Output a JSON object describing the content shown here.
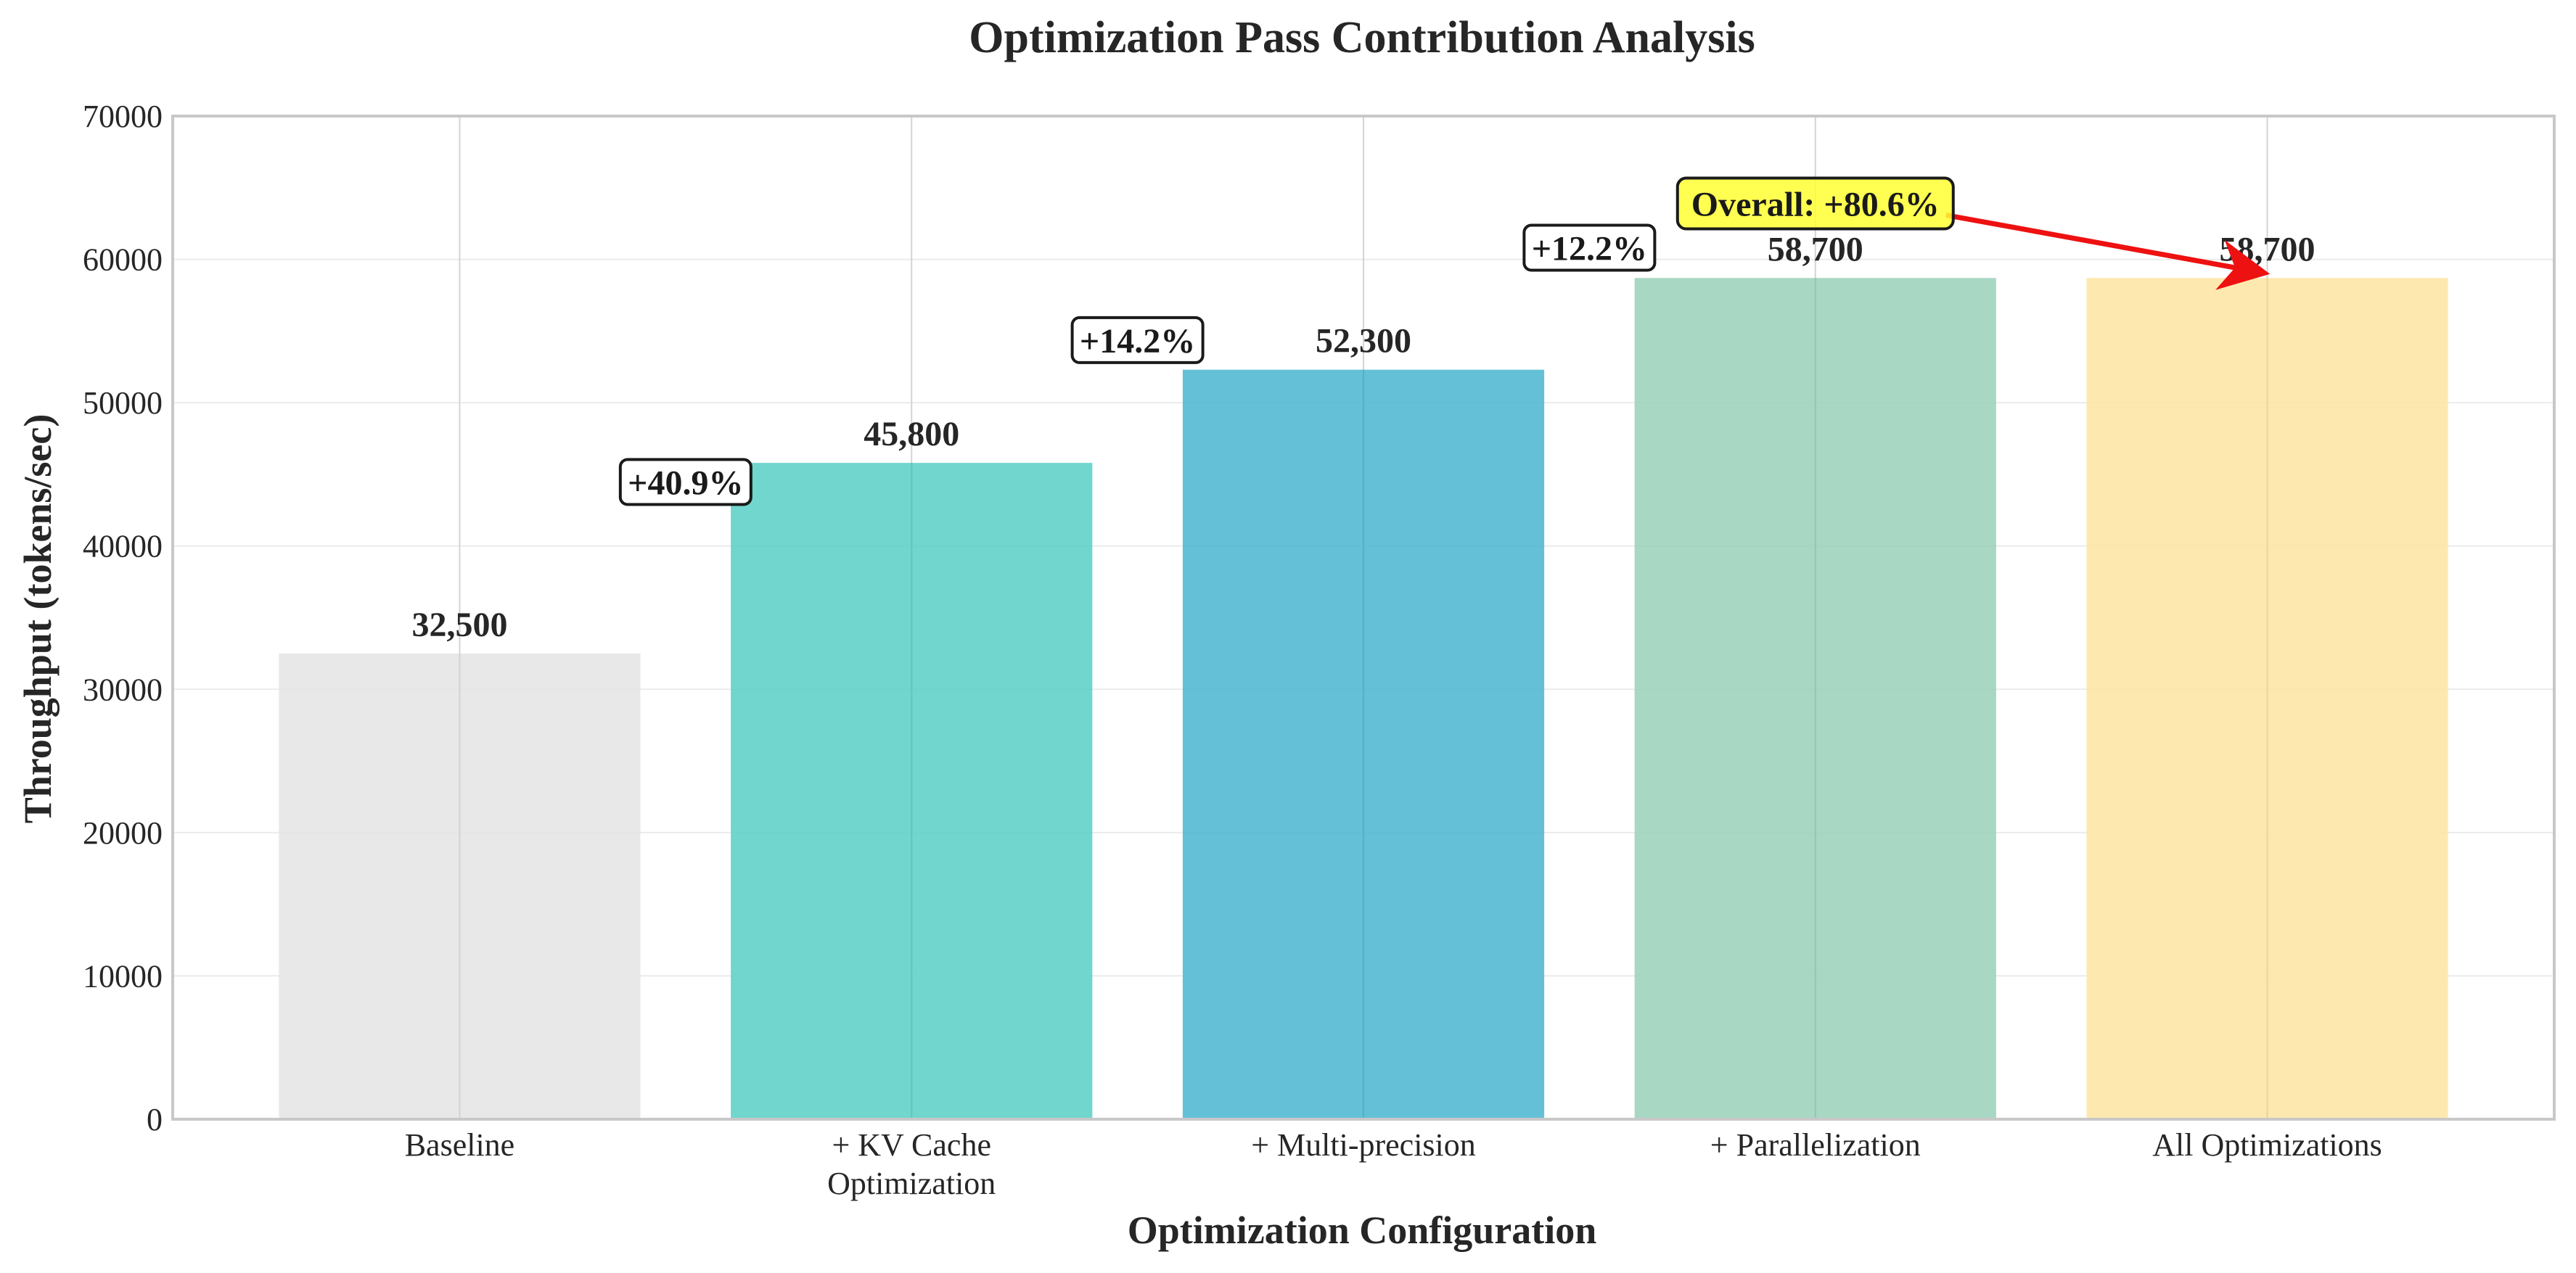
{
  "chart_data": {
    "type": "bar",
    "title": "Optimization Pass Contribution Analysis",
    "xlabel": "Optimization Configuration",
    "ylabel": "Throughput (tokens/sec)",
    "ylim": [
      0,
      70000
    ],
    "yticks": [
      0,
      10000,
      20000,
      30000,
      40000,
      50000,
      60000,
      70000
    ],
    "grid": true,
    "categories": [
      [
        "Baseline"
      ],
      [
        "+ KV Cache",
        "Optimization"
      ],
      [
        "+ Multi-precision"
      ],
      [
        "+ Parallelization"
      ],
      [
        "All Optimizations"
      ]
    ],
    "values": [
      32500,
      45800,
      52300,
      58700,
      58700
    ],
    "value_labels": [
      "32,500",
      "45,800",
      "52,300",
      "58,700",
      "58,700"
    ],
    "colors": [
      "#e6e6e6",
      "#62d1c8",
      "#52b9d3",
      "#9fd3bd",
      "#fde7a6"
    ],
    "increments": [
      {
        "label": "+40.9%",
        "between": [
          0,
          1
        ]
      },
      {
        "label": "+14.2%",
        "between": [
          1,
          2
        ]
      },
      {
        "label": "+12.2%",
        "between": [
          2,
          3
        ]
      }
    ],
    "overall_annotation": {
      "label": "Overall: +80.6%",
      "target_index": 4,
      "box_color": "#ffff33",
      "arrow_color": "#ee1111"
    }
  }
}
